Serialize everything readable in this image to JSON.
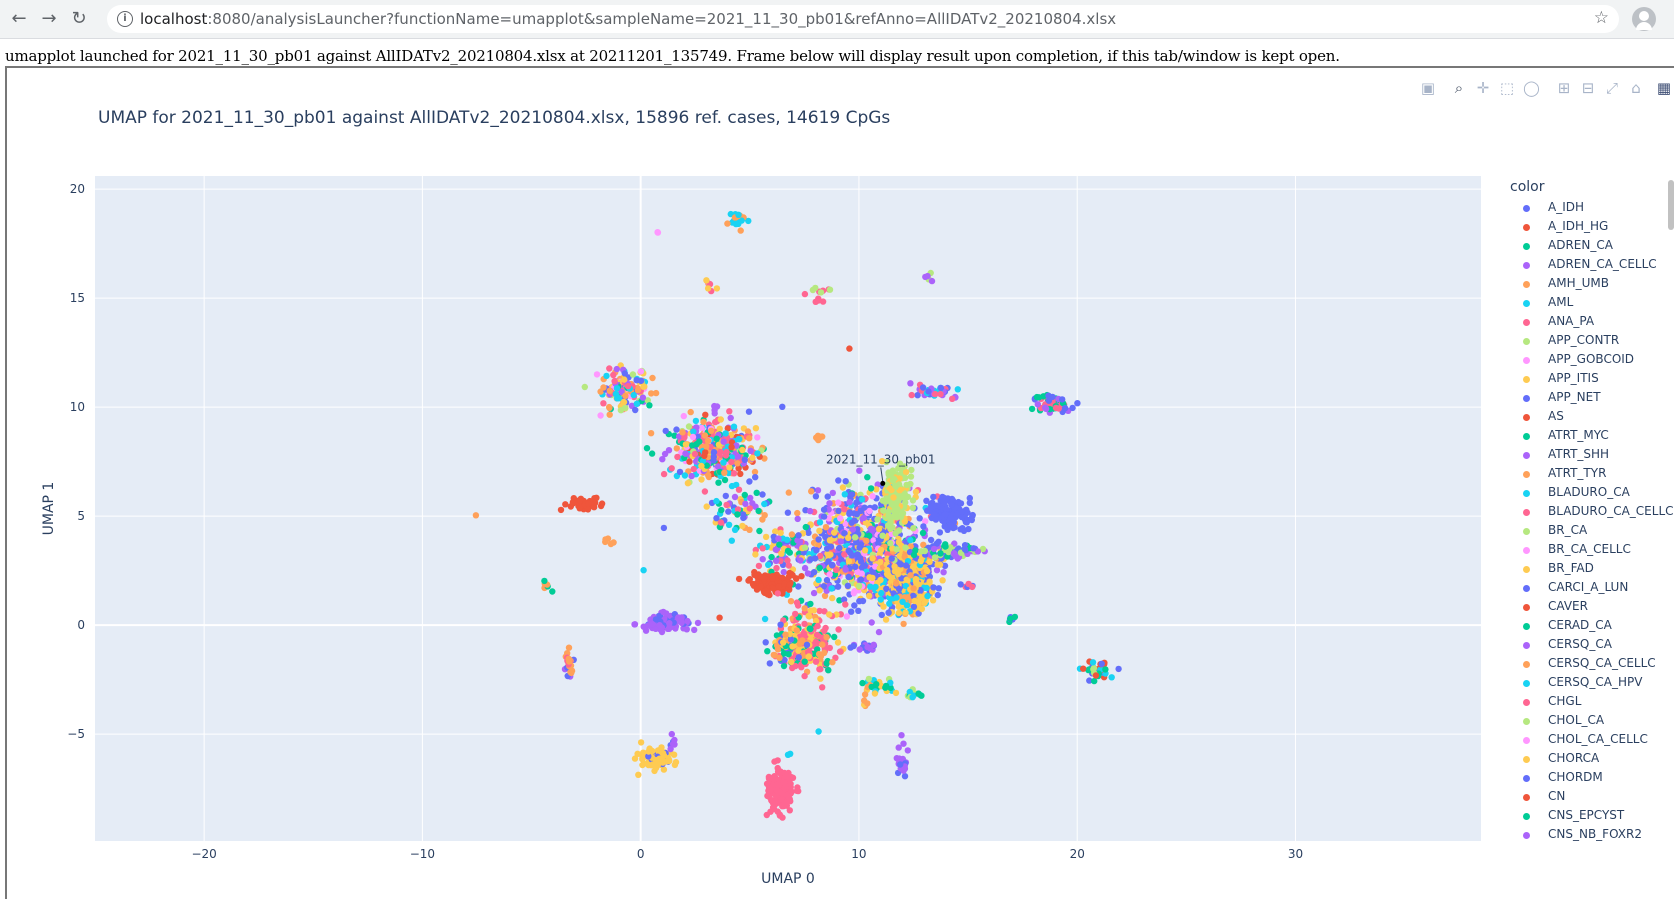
{
  "browser": {
    "url_host": "localhost",
    "url_rest": ":8080/analysisLauncher?functionName=umapplot&sampleName=2021_11_30_pb01&refAnno=AllIDATv2_20210804.xlsx",
    "icons": [
      "back-arrow-icon",
      "forward-arrow-icon",
      "reload-icon",
      "info-icon",
      "star-icon",
      "profile-icon"
    ]
  },
  "status_text": "umapplot launched for 2021_11_30_pb01 against AllIDATv2_20210804.xlsx at 20211201_135749. Frame below will display result upon completion, if this tab/window is kept open.",
  "modebar_icons": [
    "camera-icon",
    "zoom-icon",
    "pan-icon",
    "box-select-icon",
    "lasso-icon",
    "zoom-in-icon",
    "zoom-out-icon",
    "autoscale-icon",
    "reset-axes-icon",
    "plotly-logo-icon"
  ],
  "chart_data": {
    "type": "scatter",
    "title": "UMAP for 2021_11_30_pb01 against AllIDATv2_20210804.xlsx, 15896 ref. cases, 14619 CpGs",
    "xlabel": "UMAP 0",
    "ylabel": "UMAP 1",
    "xlim": [
      -25,
      38.5
    ],
    "ylim": [
      -9.9,
      20.6
    ],
    "xticks": [
      -20,
      -10,
      0,
      10,
      20,
      30
    ],
    "xtick_labels": [
      "−20",
      "−10",
      "0",
      "10",
      "20",
      "30"
    ],
    "yticks": [
      -5,
      0,
      5,
      10,
      15,
      20
    ],
    "ytick_labels": [
      "−5",
      "0",
      "5",
      "10",
      "15",
      "20"
    ],
    "grid": true,
    "legend_title": "color",
    "legend_placement": "right",
    "annotation": {
      "text": "2021_11_30_pb01",
      "x": 11.0,
      "y": 6.5
    },
    "series": [
      {
        "name": "A_IDH",
        "color": "#636efa"
      },
      {
        "name": "A_IDH_HG",
        "color": "#EF553B"
      },
      {
        "name": "ADREN_CA",
        "color": "#00cc96"
      },
      {
        "name": "ADREN_CA_CELLC",
        "color": "#ab63fa"
      },
      {
        "name": "AMH_UMB",
        "color": "#FFA15A"
      },
      {
        "name": "AML",
        "color": "#19d3f3"
      },
      {
        "name": "ANA_PA",
        "color": "#FF6692"
      },
      {
        "name": "APP_CONTR",
        "color": "#B6E880"
      },
      {
        "name": "APP_GOBCOID",
        "color": "#FF97FF"
      },
      {
        "name": "APP_ITIS",
        "color": "#FECB52"
      },
      {
        "name": "APP_NET",
        "color": "#636efa"
      },
      {
        "name": "AS",
        "color": "#EF553B"
      },
      {
        "name": "ATRT_MYC",
        "color": "#00cc96"
      },
      {
        "name": "ATRT_SHH",
        "color": "#ab63fa"
      },
      {
        "name": "ATRT_TYR",
        "color": "#FFA15A"
      },
      {
        "name": "BLADURO_CA",
        "color": "#19d3f3"
      },
      {
        "name": "BLADURO_CA_CELLC",
        "color": "#FF6692"
      },
      {
        "name": "BR_CA",
        "color": "#B6E880"
      },
      {
        "name": "BR_CA_CELLC",
        "color": "#FF97FF"
      },
      {
        "name": "BR_FAD",
        "color": "#FECB52"
      },
      {
        "name": "CARCI_A_LUN",
        "color": "#636efa"
      },
      {
        "name": "CAVER",
        "color": "#EF553B"
      },
      {
        "name": "CERAD_CA",
        "color": "#00cc96"
      },
      {
        "name": "CERSQ_CA",
        "color": "#ab63fa"
      },
      {
        "name": "CERSQ_CA_CELLC",
        "color": "#FFA15A"
      },
      {
        "name": "CERSQ_CA_HPV",
        "color": "#19d3f3"
      },
      {
        "name": "CHGL",
        "color": "#FF6692"
      },
      {
        "name": "CHOL_CA",
        "color": "#B6E880"
      },
      {
        "name": "CHOL_CA_CELLC",
        "color": "#FF97FF"
      },
      {
        "name": "CHORCA",
        "color": "#FECB52"
      },
      {
        "name": "CHORDM",
        "color": "#636efa"
      },
      {
        "name": "CN",
        "color": "#EF553B"
      },
      {
        "name": "CNS_EPCYST",
        "color": "#00cc96"
      },
      {
        "name": "CNS_NB_FOXR2",
        "color": "#ab63fa"
      }
    ],
    "clusters": [
      {
        "x": 4.5,
        "y": 18.6,
        "sx": 0.2,
        "sy": 0.2,
        "n": 25,
        "colors": [
          5,
          4
        ]
      },
      {
        "x": 0.8,
        "y": 18.0,
        "sx": 0.05,
        "sy": 0.05,
        "n": 2,
        "colors": [
          8
        ]
      },
      {
        "x": 3.2,
        "y": 15.5,
        "sx": 0.2,
        "sy": 0.2,
        "n": 8,
        "colors": [
          9,
          0,
          6
        ]
      },
      {
        "x": 8.2,
        "y": 15.3,
        "sx": 0.2,
        "sy": 0.25,
        "n": 12,
        "colors": [
          7,
          6
        ]
      },
      {
        "x": 13.2,
        "y": 15.9,
        "sx": 0.1,
        "sy": 0.1,
        "n": 5,
        "colors": [
          7,
          3
        ]
      },
      {
        "x": 9.6,
        "y": 12.6,
        "sx": 0.05,
        "sy": 0.05,
        "n": 1,
        "colors": [
          1
        ]
      },
      {
        "x": -0.7,
        "y": 10.9,
        "sx": 0.6,
        "sy": 0.45,
        "n": 140,
        "colors": [
          4,
          0,
          6,
          9,
          5,
          7,
          2,
          3,
          14,
          19,
          8
        ]
      },
      {
        "x": 13.5,
        "y": 10.7,
        "sx": 0.6,
        "sy": 0.15,
        "n": 40,
        "colors": [
          5,
          3,
          0,
          6
        ]
      },
      {
        "x": 18.9,
        "y": 10.1,
        "sx": 0.4,
        "sy": 0.2,
        "n": 70,
        "colors": [
          6,
          2,
          3,
          0,
          12
        ]
      },
      {
        "x": 3.3,
        "y": 8.0,
        "sx": 0.9,
        "sy": 0.7,
        "n": 420,
        "colors": [
          0,
          1,
          2,
          3,
          4,
          5,
          6,
          7,
          8,
          9,
          14,
          15,
          16,
          19,
          20,
          21,
          22,
          23,
          24,
          25,
          26
        ]
      },
      {
        "x": 8.2,
        "y": 8.6,
        "sx": 0.15,
        "sy": 0.1,
        "n": 6,
        "colors": [
          4
        ]
      },
      {
        "x": 6.5,
        "y": 10.0,
        "sx": 0.05,
        "sy": 0.05,
        "n": 1,
        "colors": [
          0
        ]
      },
      {
        "x": 3.4,
        "y": 10.0,
        "sx": 0.05,
        "sy": 0.1,
        "n": 3,
        "colors": [
          3
        ]
      },
      {
        "x": -2.6,
        "y": 5.6,
        "sx": 0.4,
        "sy": 0.15,
        "n": 40,
        "colors": [
          1
        ]
      },
      {
        "x": -7.6,
        "y": 5.1,
        "sx": 0.05,
        "sy": 0.05,
        "n": 1,
        "colors": [
          4
        ]
      },
      {
        "x": -1.5,
        "y": 3.9,
        "sx": 0.15,
        "sy": 0.1,
        "n": 5,
        "colors": [
          4
        ]
      },
      {
        "x": 1.0,
        "y": 4.5,
        "sx": 0.05,
        "sy": 0.05,
        "n": 1,
        "colors": [
          0
        ]
      },
      {
        "x": -4.3,
        "y": 1.9,
        "sx": 0.15,
        "sy": 0.15,
        "n": 6,
        "colors": [
          4,
          2
        ]
      },
      {
        "x": 0.1,
        "y": 2.6,
        "sx": 0.05,
        "sy": 0.05,
        "n": 1,
        "colors": [
          5
        ]
      },
      {
        "x": 4.5,
        "y": 5.2,
        "sx": 0.7,
        "sy": 0.5,
        "n": 60,
        "colors": [
          0,
          4,
          9,
          5,
          3,
          2,
          6
        ]
      },
      {
        "x": 6.6,
        "y": 3.3,
        "sx": 0.6,
        "sy": 0.5,
        "n": 70,
        "colors": [
          3,
          0,
          5,
          2,
          6,
          9
        ]
      },
      {
        "x": 10.2,
        "y": 3.6,
        "sx": 1.4,
        "sy": 1.2,
        "n": 900,
        "colors": [
          0,
          0,
          3,
          4,
          5,
          6,
          8,
          9,
          19,
          2,
          7,
          10,
          20,
          23,
          30
        ]
      },
      {
        "x": 12.2,
        "y": 2.0,
        "sx": 0.7,
        "sy": 0.7,
        "n": 350,
        "colors": [
          9,
          19,
          29,
          4,
          0,
          5
        ]
      },
      {
        "x": 11.7,
        "y": 6.0,
        "sx": 0.3,
        "sy": 0.8,
        "n": 160,
        "colors": [
          7,
          17,
          27,
          9
        ]
      },
      {
        "x": 14.2,
        "y": 5.1,
        "sx": 0.5,
        "sy": 0.35,
        "n": 130,
        "colors": [
          0,
          10,
          20,
          30
        ]
      },
      {
        "x": 14.3,
        "y": 3.4,
        "sx": 0.8,
        "sy": 0.15,
        "n": 70,
        "colors": [
          2,
          3,
          0,
          7
        ]
      },
      {
        "x": 15.0,
        "y": 1.8,
        "sx": 0.2,
        "sy": 0.05,
        "n": 6,
        "colors": [
          6,
          0
        ]
      },
      {
        "x": 6.0,
        "y": 1.9,
        "sx": 0.5,
        "sy": 0.25,
        "n": 140,
        "colors": [
          1,
          11,
          21,
          31
        ]
      },
      {
        "x": 1.3,
        "y": 0.1,
        "sx": 0.6,
        "sy": 0.2,
        "n": 110,
        "colors": [
          3,
          0,
          13,
          23
        ]
      },
      {
        "x": 3.6,
        "y": 0.3,
        "sx": 0.05,
        "sy": 0.05,
        "n": 1,
        "colors": [
          1
        ]
      },
      {
        "x": 5.7,
        "y": 0.2,
        "sx": 0.05,
        "sy": 0.05,
        "n": 1,
        "colors": [
          5
        ]
      },
      {
        "x": 7.6,
        "y": -0.8,
        "sx": 0.6,
        "sy": 0.8,
        "n": 200,
        "colors": [
          6,
          26,
          2,
          4,
          9,
          16
        ]
      },
      {
        "x": 6.7,
        "y": -0.8,
        "sx": 0.4,
        "sy": 0.4,
        "n": 60,
        "colors": [
          2,
          4,
          9,
          0
        ]
      },
      {
        "x": 10.2,
        "y": -1.0,
        "sx": 0.3,
        "sy": 0.1,
        "n": 20,
        "colors": [
          0,
          3
        ]
      },
      {
        "x": 11.0,
        "y": -2.8,
        "sx": 0.4,
        "sy": 0.15,
        "n": 25,
        "colors": [
          9,
          4,
          5,
          2,
          7
        ]
      },
      {
        "x": 12.5,
        "y": -3.2,
        "sx": 0.2,
        "sy": 0.1,
        "n": 12,
        "colors": [
          2,
          5,
          7
        ]
      },
      {
        "x": 10.3,
        "y": -3.5,
        "sx": 0.1,
        "sy": 0.2,
        "n": 6,
        "colors": [
          4,
          9
        ]
      },
      {
        "x": 17.0,
        "y": 0.3,
        "sx": 0.1,
        "sy": 0.1,
        "n": 6,
        "colors": [
          0,
          12
        ]
      },
      {
        "x": 21.0,
        "y": -2.1,
        "sx": 0.35,
        "sy": 0.2,
        "n": 40,
        "colors": [
          0,
          1,
          2,
          7,
          5
        ]
      },
      {
        "x": -3.3,
        "y": -1.9,
        "sx": 0.1,
        "sy": 0.35,
        "n": 25,
        "colors": [
          6,
          0,
          3,
          4
        ]
      },
      {
        "x": 8.1,
        "y": -4.8,
        "sx": 0.05,
        "sy": 0.05,
        "n": 1,
        "colors": [
          5
        ]
      },
      {
        "x": 12.0,
        "y": -6.2,
        "sx": 0.2,
        "sy": 0.35,
        "n": 20,
        "colors": [
          3,
          0
        ]
      },
      {
        "x": 0.7,
        "y": -6.1,
        "sx": 0.4,
        "sy": 0.25,
        "n": 90,
        "colors": [
          9,
          19,
          0,
          29
        ]
      },
      {
        "x": 1.4,
        "y": -5.4,
        "sx": 0.1,
        "sy": 0.2,
        "n": 8,
        "colors": [
          0,
          3
        ]
      },
      {
        "x": 6.4,
        "y": -7.6,
        "sx": 0.3,
        "sy": 0.5,
        "n": 170,
        "colors": [
          6,
          26,
          16
        ]
      },
      {
        "x": 6.8,
        "y": -5.9,
        "sx": 0.05,
        "sy": 0.1,
        "n": 2,
        "colors": [
          5
        ]
      }
    ]
  }
}
